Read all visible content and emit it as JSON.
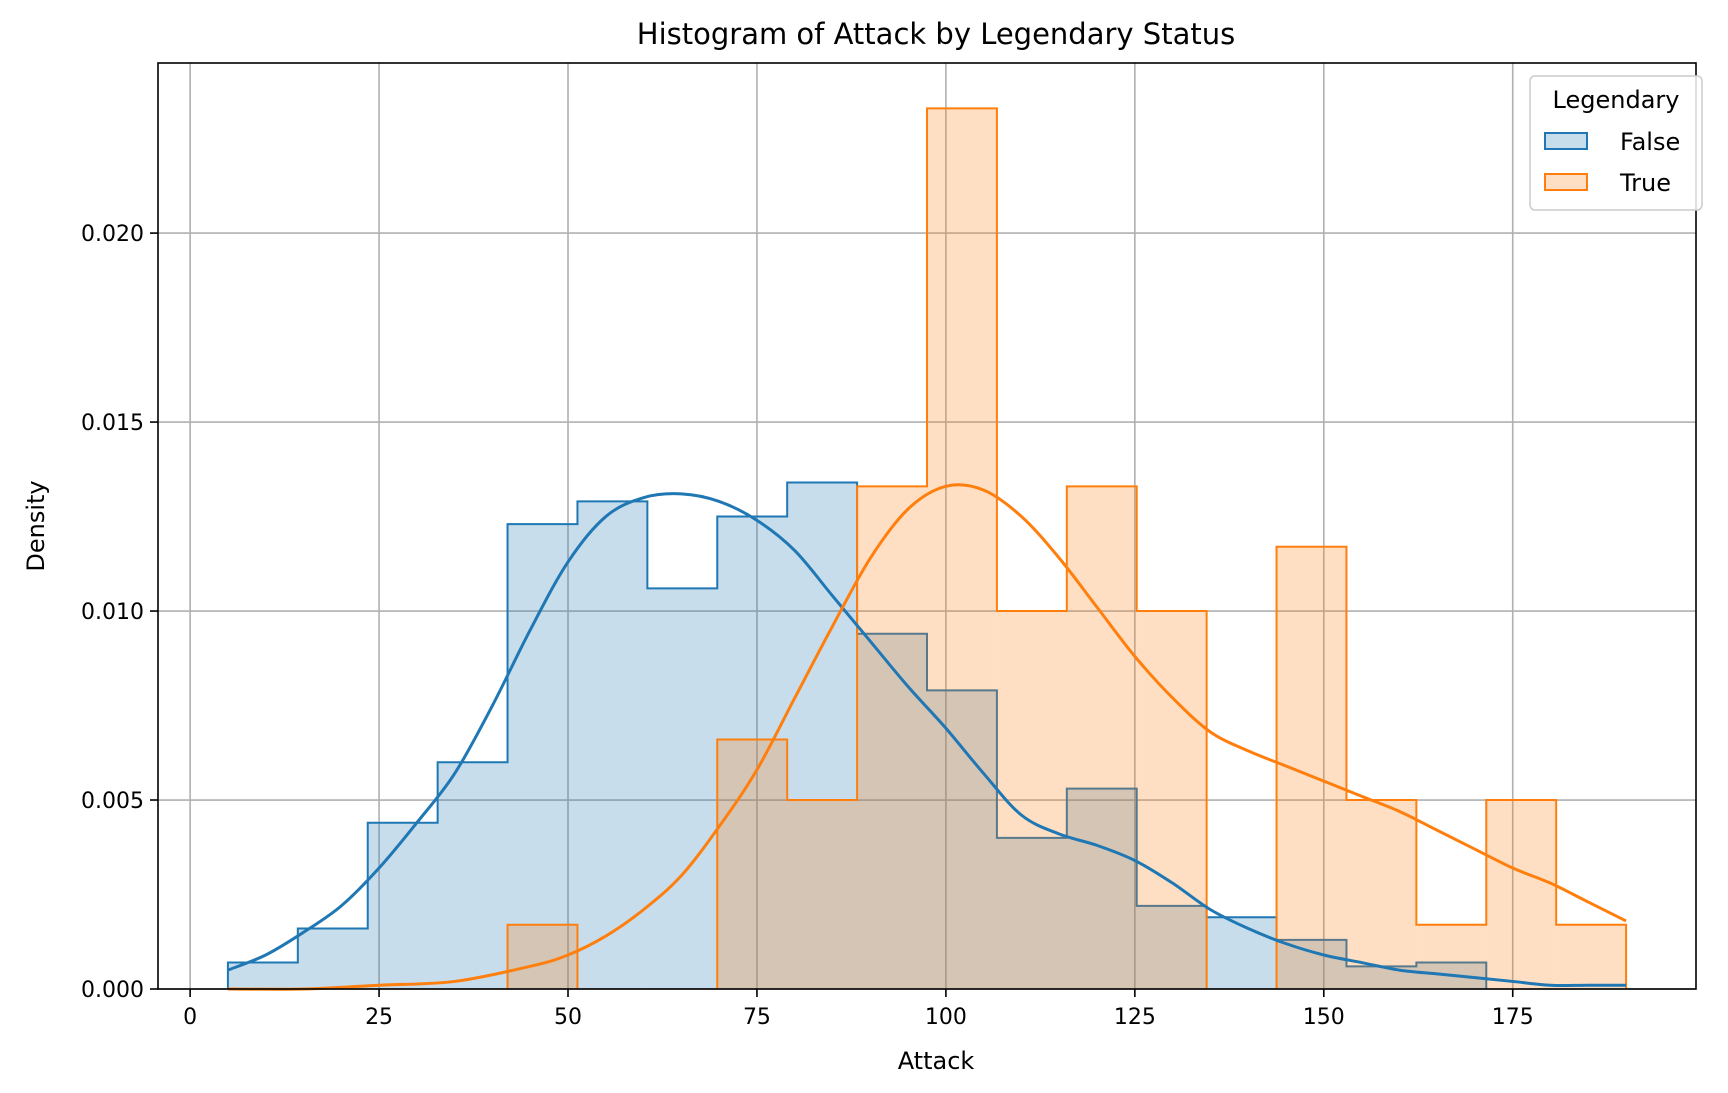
{
  "chart_data": {
    "type": "histogram",
    "title": "Histogram of Attack by Legendary Status",
    "xlabel": "Attack",
    "ylabel": "Density",
    "xlim": [
      -4.25,
      199.25
    ],
    "ylim": [
      0,
      0.0245
    ],
    "xticks": [
      0,
      25,
      50,
      75,
      100,
      125,
      150,
      175
    ],
    "xtick_labels": [
      "0",
      "25",
      "50",
      "75",
      "100",
      "125",
      "150",
      "175"
    ],
    "yticks": [
      0,
      0.005,
      0.01,
      0.015,
      0.02
    ],
    "ytick_labels": [
      "0.000",
      "0.005",
      "0.010",
      "0.015",
      "0.020"
    ],
    "grid": true,
    "legend": {
      "title": "Legendary",
      "placement": "top-right"
    },
    "bin_edges": [
      5,
      14.25,
      23.5,
      32.75,
      42,
      51.25,
      60.5,
      69.75,
      79,
      88.25,
      97.5,
      106.75,
      116,
      125.25,
      134.5,
      143.75,
      153,
      162.25,
      171.5,
      180.75,
      190
    ],
    "series": [
      {
        "name": "False",
        "color": "#1f77b4",
        "densities": [
          0.0007,
          0.0016,
          0.0044,
          0.006,
          0.0123,
          0.0129,
          0.0106,
          0.0125,
          0.0134,
          0.0094,
          0.0079,
          0.004,
          0.0053,
          0.0022,
          0.0019,
          0.0013,
          0.0006,
          0.0007,
          0,
          0
        ],
        "kde": {
          "x": [
            5,
            10,
            15,
            20,
            25,
            30,
            35,
            40,
            45,
            50,
            55,
            60,
            65,
            70,
            75,
            80,
            85,
            90,
            95,
            100,
            105,
            110,
            115,
            120,
            125,
            130,
            135,
            140,
            145,
            150,
            155,
            160,
            165,
            170,
            175,
            180,
            185,
            190
          ],
          "y": [
            0.0005,
            0.0009,
            0.0015,
            0.0022,
            0.0032,
            0.0044,
            0.0057,
            0.0075,
            0.0095,
            0.0113,
            0.0125,
            0.013,
            0.0131,
            0.0129,
            0.0124,
            0.0116,
            0.0104,
            0.0092,
            0.008,
            0.0069,
            0.0057,
            0.0046,
            0.0041,
            0.0038,
            0.0034,
            0.0028,
            0.0021,
            0.0016,
            0.0012,
            0.0009,
            0.0007,
            0.0005,
            0.0004,
            0.0003,
            0.0002,
            0.0001,
            0.0001,
            0.0001
          ]
        }
      },
      {
        "name": "True",
        "color": "#ff7f0e",
        "densities": [
          0,
          0,
          0,
          0,
          0.0017,
          0,
          0,
          0.0066,
          0.005,
          0.0133,
          0.0233,
          0.01,
          0.0133,
          0.01,
          0,
          0.0117,
          0.005,
          0.0017,
          0.005,
          0.0017
        ],
        "kde": {
          "x": [
            5,
            15,
            25,
            35,
            45,
            50,
            55,
            60,
            65,
            70,
            75,
            80,
            85,
            90,
            95,
            100,
            105,
            110,
            115,
            120,
            125,
            130,
            135,
            140,
            145,
            150,
            155,
            160,
            165,
            170,
            175,
            180,
            185,
            190
          ],
          "y": [
            0,
            0,
            0.0001,
            0.0002,
            0.0006,
            0.0009,
            0.0014,
            0.0021,
            0.003,
            0.0043,
            0.0058,
            0.0077,
            0.0096,
            0.0114,
            0.0127,
            0.0133,
            0.0132,
            0.0125,
            0.0114,
            0.0101,
            0.0088,
            0.0077,
            0.0068,
            0.0063,
            0.0059,
            0.0055,
            0.0051,
            0.0047,
            0.0042,
            0.0037,
            0.0032,
            0.0028,
            0.0023,
            0.0018
          ]
        }
      }
    ]
  }
}
